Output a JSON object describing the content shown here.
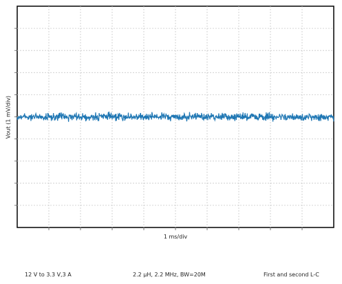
{
  "chart_data": {
    "type": "line",
    "title": "",
    "xlabel": "1 ms/div",
    "ylabel": "Vout (1 mV/div)",
    "x_divisions": 10,
    "y_divisions": 10,
    "grid": true,
    "xlim": [
      0,
      10
    ],
    "ylim": [
      -5,
      5
    ],
    "series": [
      {
        "color": "#1f77b4",
        "level_div": 0.0,
        "noise_pk_pk_div": 0.5,
        "note": "ripple/noise trace centered on the horizontal midline"
      }
    ]
  },
  "footer": {
    "left": "12 V to 3.3 V,3 A",
    "mid": "2.2 μH, 2.2 MHz, BW=20M",
    "right": "First and second L-C"
  }
}
